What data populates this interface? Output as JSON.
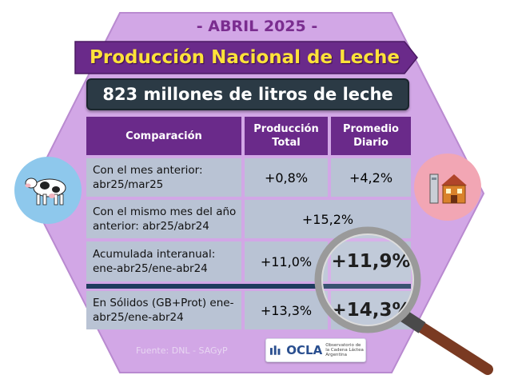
{
  "header": {
    "month": "- ABRIL 2025 -",
    "title": "Producción Nacional de Leche",
    "subtitle": "823 millones de litros de leche"
  },
  "table": {
    "columns": [
      "Comparación",
      "Producción Total",
      "Promedio Diario"
    ],
    "rows": [
      {
        "label": "Con el mes anterior: abr25/mar25",
        "total": "+0,8%",
        "daily": "+4,2%"
      },
      {
        "label": "Con el mismo mes del año anterior: abr25/abr24",
        "merged": "+15,2%"
      },
      {
        "label": "Acumulada interanual: ene-abr25/ene-abr24",
        "total": "+11,0%",
        "daily": "+11,9%"
      },
      {
        "label": "En Sólidos (GB+Prot) ene-abr25/ene-abr24",
        "total": "+13,3%",
        "daily": "+14,3%"
      }
    ]
  },
  "footer": {
    "source": "Fuente: DNL - SAGyP",
    "logo_text": "OCLA",
    "logo_sub": "Observatorio de la Cadena Láctea Argentina"
  },
  "icons": [
    "cow-icon",
    "dairy-factory-icon",
    "magnifying-glass-icon"
  ],
  "colors": {
    "hexagon": "#d2a7e6",
    "banner": "#6a2a8a",
    "title_text": "#ffe23a",
    "subtitle_bg": "#2b3a45",
    "cell_bg": "#b9c3d4",
    "cow_circle": "#8ec8ec",
    "factory_circle": "#f2a6b4"
  }
}
